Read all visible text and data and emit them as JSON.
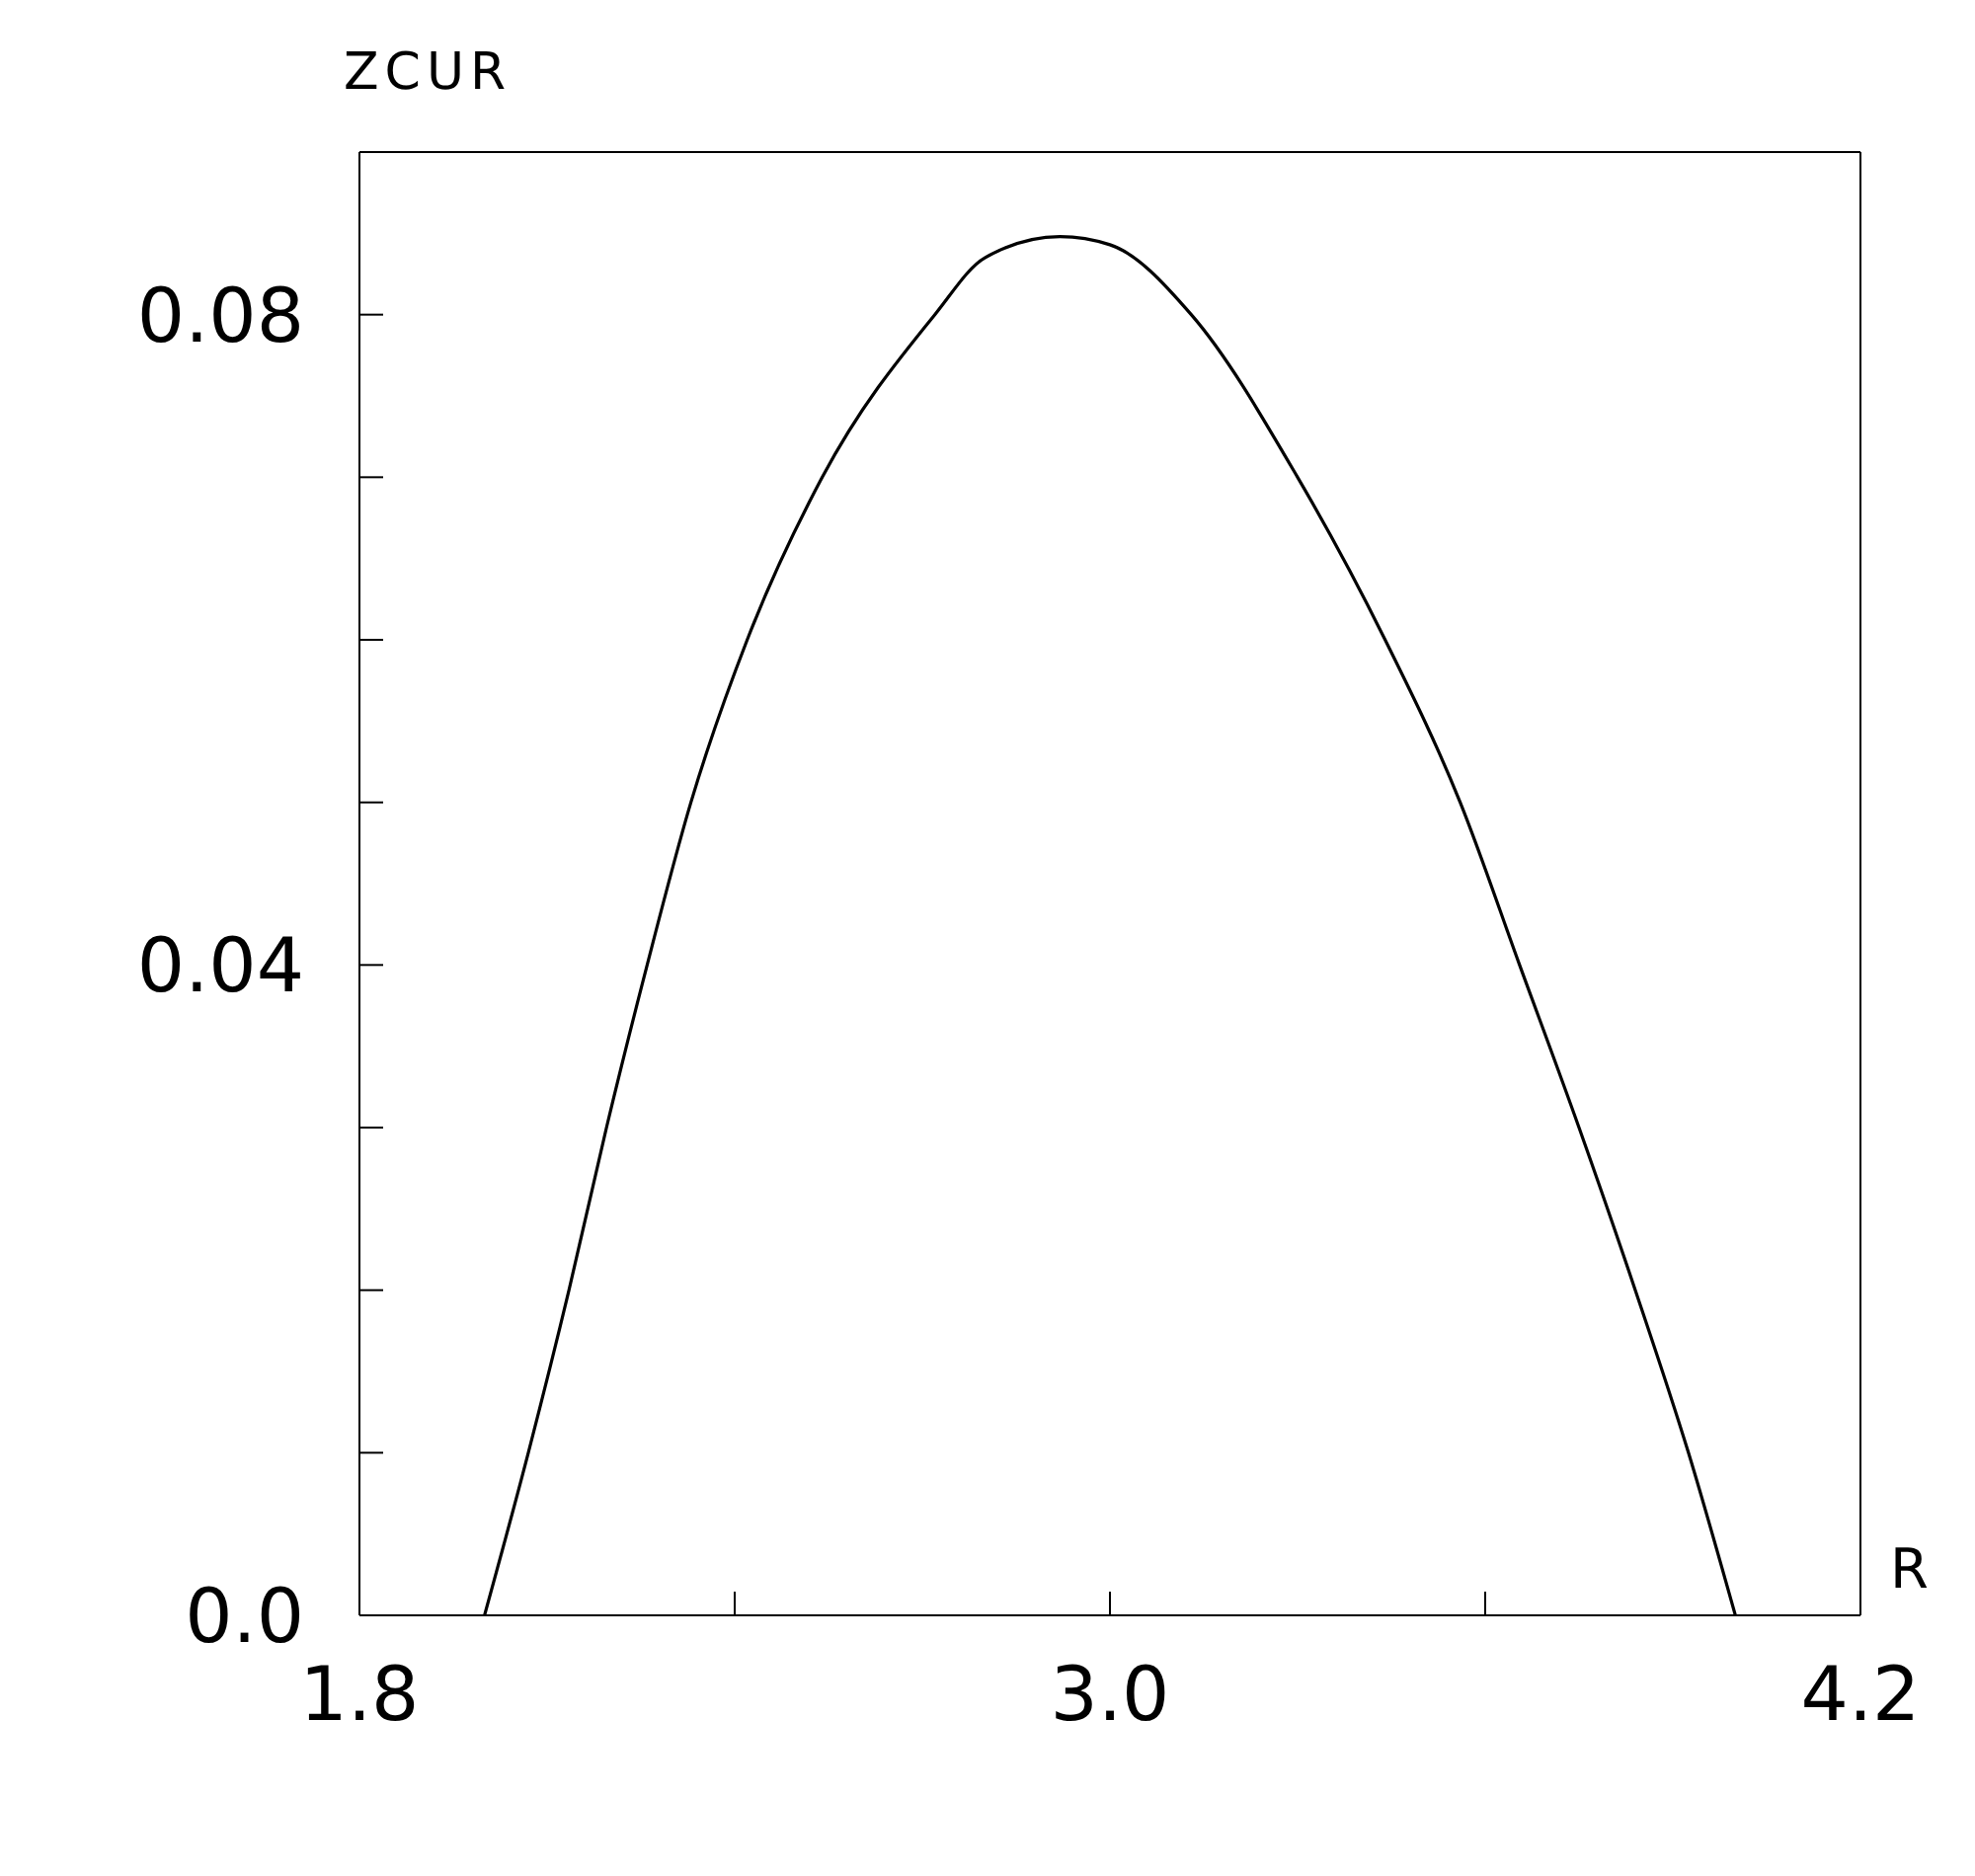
{
  "chart_data": {
    "type": "line",
    "xlabel": "R",
    "ylabel": "ZCUR",
    "x": [
      2.0,
      2.07,
      2.135,
      2.195,
      2.26,
      2.33,
      2.42,
      2.54,
      2.72,
      2.8,
      2.92,
      3.0,
      3.13,
      3.3,
      3.44,
      3.56,
      3.655,
      3.75,
      3.84,
      3.925,
      4.0
    ],
    "series": [
      {
        "color": "#000000",
        "values": [
          0,
          0.01,
          0.02,
          0.03,
          0.04,
          0.05,
          0.06,
          0.07,
          0.08,
          0.0835,
          0.0848,
          0.0843,
          0.08,
          0.07,
          0.06,
          0.05,
          0.04,
          0.03,
          0.02,
          0.01,
          0
        ]
      }
    ],
    "xlim": [
      1.8,
      4.2
    ],
    "xticks": [
      1.8,
      {
        "value": 2.4,
        "label": null
      },
      {
        "value": 3.0,
        "label": "3.0"
      },
      {
        "value": 3.6,
        "label": null
      },
      4.2
    ],
    "ylim": [
      0,
      0.09
    ],
    "yticks": [
      {
        "value": 0,
        "label": "0.0"
      },
      {
        "value": 0.01,
        "label": null
      },
      {
        "value": 0.02,
        "label": null
      },
      {
        "value": 0.03,
        "label": null
      },
      0.04,
      {
        "value": 0.05,
        "label": null
      },
      {
        "value": 0.06,
        "label": null
      },
      {
        "value": 0.07,
        "label": null
      },
      0.08
    ],
    "grid": false,
    "marker": "none",
    "line_style": "solid"
  }
}
